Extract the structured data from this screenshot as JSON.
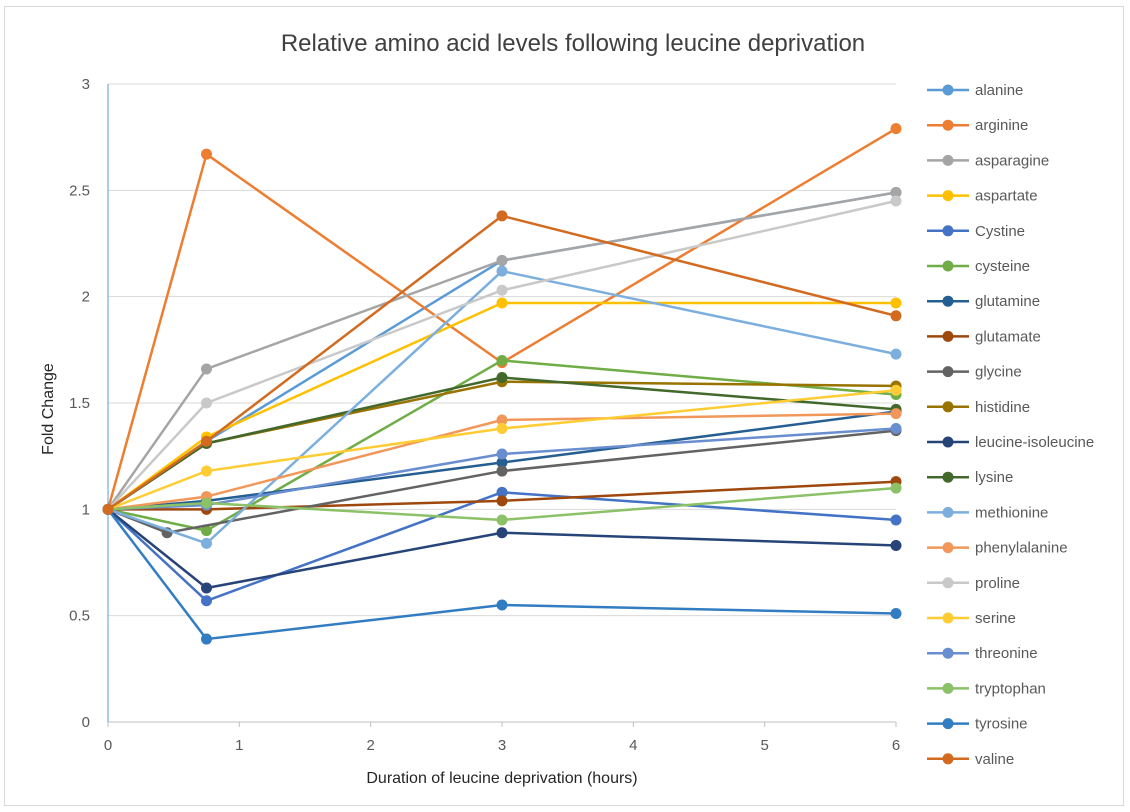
{
  "chart_data": {
    "type": "scatter",
    "mode": "lines+markers",
    "title": "Relative amino acid levels following leucine deprivation",
    "xlabel": "Duration of leucine deprivation (hours)",
    "ylabel": "Fold Change",
    "xlim": [
      0,
      6
    ],
    "ylim": [
      0,
      3
    ],
    "xticks": [
      "0",
      "1",
      "2",
      "3",
      "4",
      "5",
      "6"
    ],
    "yticks": [
      "0",
      "0.5",
      "1",
      "1.5",
      "2",
      "2.5",
      "3"
    ],
    "grid": "horizontal",
    "legend_position": "right",
    "series": [
      {
        "name": "alanine",
        "color": "#5b9bd5",
        "points": [
          [
            0,
            1
          ],
          [
            0.75,
            1.32
          ],
          [
            3,
            2.17
          ],
          [
            6,
            2.49
          ]
        ]
      },
      {
        "name": "arginine",
        "color": "#ed7d31",
        "points": [
          [
            0,
            1
          ],
          [
            0.75,
            2.67
          ],
          [
            3,
            1.69
          ],
          [
            6,
            2.79
          ]
        ]
      },
      {
        "name": "asparagine",
        "color": "#a5a5a5",
        "points": [
          [
            0,
            1
          ],
          [
            0.75,
            1.66
          ],
          [
            3,
            2.17
          ],
          [
            6,
            2.49
          ]
        ]
      },
      {
        "name": "aspartate",
        "color": "#ffc000",
        "points": [
          [
            0,
            1
          ],
          [
            0.75,
            1.34
          ],
          [
            3,
            1.97
          ],
          [
            6,
            1.97
          ]
        ]
      },
      {
        "name": "Cystine",
        "color": "#4472c4",
        "points": [
          [
            0,
            1
          ],
          [
            0.75,
            0.57
          ],
          [
            3,
            1.08
          ],
          [
            6,
            0.95
          ]
        ]
      },
      {
        "name": "cysteine",
        "color": "#70ad47",
        "points": [
          [
            0,
            1
          ],
          [
            0.75,
            0.9
          ],
          [
            3,
            1.7
          ],
          [
            6,
            1.54
          ]
        ]
      },
      {
        "name": "glutamine",
        "color": "#255e91",
        "points": [
          [
            0,
            1
          ],
          [
            0.75,
            1.04
          ],
          [
            3,
            1.22
          ],
          [
            6,
            1.46
          ]
        ]
      },
      {
        "name": "glutamate",
        "color": "#9e480e",
        "points": [
          [
            0,
            1
          ],
          [
            0.75,
            1.0
          ],
          [
            3,
            1.04
          ],
          [
            6,
            1.13
          ]
        ]
      },
      {
        "name": "glycine",
        "color": "#636363",
        "points": [
          [
            0,
            1
          ],
          [
            0.45,
            0.89
          ],
          [
            3,
            1.18
          ],
          [
            6,
            1.37
          ]
        ]
      },
      {
        "name": "histidine",
        "color": "#997300",
        "points": [
          [
            0,
            1
          ],
          [
            0.75,
            1.31
          ],
          [
            3,
            1.6
          ],
          [
            6,
            1.58
          ]
        ]
      },
      {
        "name": "leucine-isoleucine",
        "color": "#264478",
        "points": [
          [
            0,
            1
          ],
          [
            0.75,
            0.63
          ],
          [
            3,
            0.89
          ],
          [
            6,
            0.83
          ]
        ]
      },
      {
        "name": "lysine",
        "color": "#43682b",
        "points": [
          [
            0,
            1
          ],
          [
            0.75,
            1.31
          ],
          [
            3,
            1.62
          ],
          [
            6,
            1.47
          ]
        ]
      },
      {
        "name": "methionine",
        "color": "#7cafdd",
        "points": [
          [
            0,
            1
          ],
          [
            0.75,
            0.84
          ],
          [
            3,
            2.12
          ],
          [
            6,
            1.73
          ]
        ]
      },
      {
        "name": "phenylalanine",
        "color": "#f1975a",
        "points": [
          [
            0,
            1
          ],
          [
            0.75,
            1.06
          ],
          [
            3,
            1.42
          ],
          [
            6,
            1.45
          ]
        ]
      },
      {
        "name": "proline",
        "color": "#c9c9c9",
        "points": [
          [
            0,
            1
          ],
          [
            0.75,
            1.5
          ],
          [
            3,
            2.03
          ],
          [
            6,
            2.45
          ]
        ]
      },
      {
        "name": "serine",
        "color": "#ffcd33",
        "points": [
          [
            0,
            1
          ],
          [
            0.75,
            1.18
          ],
          [
            3,
            1.38
          ],
          [
            6,
            1.56
          ]
        ]
      },
      {
        "name": "threonine",
        "color": "#698ed0",
        "points": [
          [
            0,
            1
          ],
          [
            0.75,
            1.02
          ],
          [
            3,
            1.26
          ],
          [
            6,
            1.38
          ]
        ]
      },
      {
        "name": "tryptophan",
        "color": "#8cc168",
        "points": [
          [
            0,
            1
          ],
          [
            0.75,
            1.03
          ],
          [
            3,
            0.95
          ],
          [
            6,
            1.1
          ]
        ]
      },
      {
        "name": "tyrosine",
        "color": "#327dc2",
        "points": [
          [
            0,
            1
          ],
          [
            0.75,
            0.39
          ],
          [
            3,
            0.55
          ],
          [
            6,
            0.51
          ]
        ]
      },
      {
        "name": "valine",
        "color": "#d26b1f",
        "points": [
          [
            0,
            1
          ],
          [
            0.75,
            1.32
          ],
          [
            3,
            2.38
          ],
          [
            6,
            1.91
          ]
        ]
      }
    ]
  }
}
